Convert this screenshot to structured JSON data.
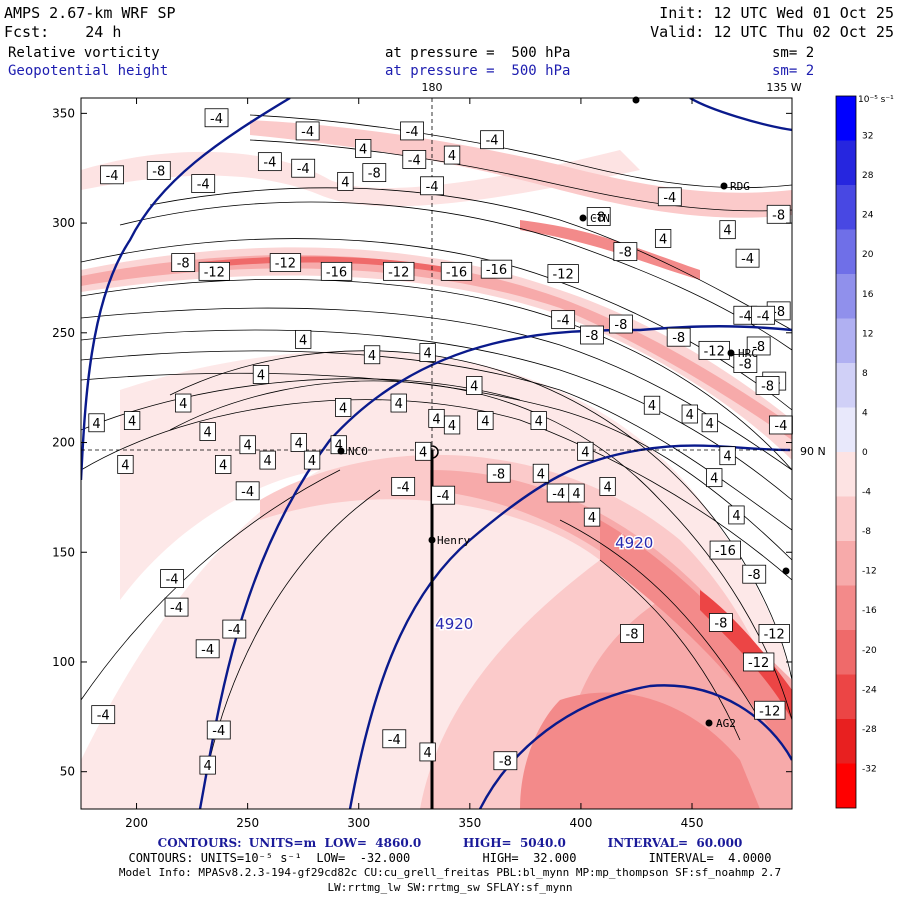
{
  "header": {
    "model": "AMPS 2.67-km WRF SP",
    "init_label": "Init:",
    "init_value": "12 UTC Wed 01 Oct 25",
    "fcst_label": "Fcst:",
    "fcst_value": "24 h",
    "valid_label": "Valid:",
    "valid_value": "12 UTC Thu 02 Oct 25",
    "field1": "Relative vorticity",
    "field1_level": "at pressure =  500 hPa",
    "field1_sm": "sm= 2",
    "field2": "Geopotential height",
    "field2_level": "at pressure =  500 hPa",
    "field2_sm": "sm= 2"
  },
  "map": {
    "lon_top_180": "180",
    "lon_top_135w": "135 W",
    "lat_right_90n": "90 N",
    "stations": [
      "NCO",
      "Henry",
      "RDG",
      "HRC",
      "AG2",
      "CTN"
    ]
  },
  "colors": {
    "height_contour": "#0a1a8c",
    "vort_contour": "#000000",
    "neg_scale": [
      "#fff2f2",
      "#fde3e3",
      "#fbcaca",
      "#f7aaaa",
      "#f38a8a",
      "#ef6a6a",
      "#ec4545",
      "#e82020",
      "#ff0000"
    ],
    "pos_scale": [
      "#ffffff",
      "#e8e8fb",
      "#d0d0f7",
      "#b0b0f2",
      "#9090ec",
      "#6f6fe8",
      "#4848e3",
      "#2626df",
      "#0000ff"
    ]
  },
  "chart_data": {
    "type": "contour-map",
    "title": "Relative vorticity / Geopotential height at 500 hPa",
    "xlim": [
      175,
      495
    ],
    "ylim": [
      33,
      357
    ],
    "x_ticks": [
      200,
      250,
      300,
      350,
      400,
      450
    ],
    "y_ticks": [
      50,
      100,
      150,
      200,
      250,
      300,
      350
    ],
    "vorticity_labels": [
      {
        "x": 189,
        "y": 322,
        "v": "-4"
      },
      {
        "x": 210,
        "y": 324,
        "v": "-8"
      },
      {
        "x": 236,
        "y": 348,
        "v": "-4"
      },
      {
        "x": 277,
        "y": 342,
        "v": "-4"
      },
      {
        "x": 324,
        "y": 342,
        "v": "-4"
      },
      {
        "x": 360,
        "y": 338,
        "v": "-4"
      },
      {
        "x": 260,
        "y": 328,
        "v": "-4"
      },
      {
        "x": 230,
        "y": 318,
        "v": "-4"
      },
      {
        "x": 275,
        "y": 325,
        "v": "-4"
      },
      {
        "x": 307,
        "y": 323,
        "v": "-8"
      },
      {
        "x": 333,
        "y": 317,
        "v": "-4"
      },
      {
        "x": 325,
        "y": 329,
        "v": "-4"
      },
      {
        "x": 342,
        "y": 331,
        "v": "4"
      },
      {
        "x": 302,
        "y": 334,
        "v": "4"
      },
      {
        "x": 294,
        "y": 319,
        "v": "4"
      },
      {
        "x": 267,
        "y": 282,
        "v": "-12"
      },
      {
        "x": 235,
        "y": 278,
        "v": "-12"
      },
      {
        "x": 221,
        "y": 282,
        "v": "-8"
      },
      {
        "x": 290,
        "y": 278,
        "v": "-16"
      },
      {
        "x": 318,
        "y": 278,
        "v": "-12"
      },
      {
        "x": 344,
        "y": 278,
        "v": "-16"
      },
      {
        "x": 362,
        "y": 279,
        "v": "-16"
      },
      {
        "x": 392,
        "y": 277,
        "v": "-12"
      },
      {
        "x": 392,
        "y": 256,
        "v": "-4"
      },
      {
        "x": 405,
        "y": 249,
        "v": "-8"
      },
      {
        "x": 418,
        "y": 254,
        "v": "-8"
      },
      {
        "x": 444,
        "y": 248,
        "v": "-8"
      },
      {
        "x": 460,
        "y": 242,
        "v": "-12"
      },
      {
        "x": 474,
        "y": 236,
        "v": "-8"
      },
      {
        "x": 487,
        "y": 228,
        "v": "-4"
      },
      {
        "x": 474,
        "y": 258,
        "v": "-4"
      },
      {
        "x": 489,
        "y": 260,
        "v": "-8"
      },
      {
        "x": 475,
        "y": 284,
        "v": "-4"
      },
      {
        "x": 466,
        "y": 297,
        "v": "4"
      },
      {
        "x": 489,
        "y": 304,
        "v": "-8"
      },
      {
        "x": 437,
        "y": 293,
        "v": "4"
      },
      {
        "x": 420,
        "y": 287,
        "v": "-8"
      },
      {
        "x": 408,
        "y": 303,
        "v": "-8"
      },
      {
        "x": 440,
        "y": 312,
        "v": "-4"
      },
      {
        "x": 482,
        "y": 258,
        "v": "-4"
      },
      {
        "x": 480,
        "y": 244,
        "v": "-8"
      },
      {
        "x": 484,
        "y": 226,
        "v": "-8"
      },
      {
        "x": 490,
        "y": 208,
        "v": "-4"
      },
      {
        "x": 432,
        "y": 217,
        "v": "4"
      },
      {
        "x": 449,
        "y": 213,
        "v": "4"
      },
      {
        "x": 458,
        "y": 209,
        "v": "4"
      },
      {
        "x": 466,
        "y": 194,
        "v": "4"
      },
      {
        "x": 460,
        "y": 184,
        "v": "4"
      },
      {
        "x": 470,
        "y": 167,
        "v": "4"
      },
      {
        "x": 465,
        "y": 151,
        "v": "-16"
      },
      {
        "x": 478,
        "y": 140,
        "v": "-8"
      },
      {
        "x": 463,
        "y": 118,
        "v": "-8"
      },
      {
        "x": 487,
        "y": 113,
        "v": "-12"
      },
      {
        "x": 480,
        "y": 100,
        "v": "-12"
      },
      {
        "x": 485,
        "y": 78,
        "v": "-12"
      },
      {
        "x": 423,
        "y": 113,
        "v": "-8"
      },
      {
        "x": 366,
        "y": 55,
        "v": "-8"
      },
      {
        "x": 331,
        "y": 59,
        "v": "4"
      },
      {
        "x": 259,
        "y": 192,
        "v": "4"
      },
      {
        "x": 221,
        "y": 218,
        "v": "4"
      },
      {
        "x": 198,
        "y": 210,
        "v": "4"
      },
      {
        "x": 182,
        "y": 209,
        "v": "4"
      },
      {
        "x": 195,
        "y": 190,
        "v": "4"
      },
      {
        "x": 239,
        "y": 190,
        "v": "4"
      },
      {
        "x": 232,
        "y": 205,
        "v": "4"
      },
      {
        "x": 250,
        "y": 199,
        "v": "4"
      },
      {
        "x": 273,
        "y": 200,
        "v": "4"
      },
      {
        "x": 256,
        "y": 231,
        "v": "4"
      },
      {
        "x": 275,
        "y": 247,
        "v": "4"
      },
      {
        "x": 306,
        "y": 240,
        "v": "4"
      },
      {
        "x": 331,
        "y": 241,
        "v": "4"
      },
      {
        "x": 352,
        "y": 226,
        "v": "4"
      },
      {
        "x": 357,
        "y": 210,
        "v": "4"
      },
      {
        "x": 342,
        "y": 208,
        "v": "4"
      },
      {
        "x": 335,
        "y": 211,
        "v": "4"
      },
      {
        "x": 381,
        "y": 210,
        "v": "4"
      },
      {
        "x": 382,
        "y": 186,
        "v": "4"
      },
      {
        "x": 405,
        "y": 166,
        "v": "4"
      },
      {
        "x": 412,
        "y": 180,
        "v": "4"
      },
      {
        "x": 390,
        "y": 177,
        "v": "-4"
      },
      {
        "x": 363,
        "y": 186,
        "v": "-8"
      },
      {
        "x": 338,
        "y": 176,
        "v": "-4"
      },
      {
        "x": 320,
        "y": 180,
        "v": "-4"
      },
      {
        "x": 291,
        "y": 199,
        "v": "4"
      },
      {
        "x": 279,
        "y": 192,
        "v": "4"
      },
      {
        "x": 293,
        "y": 216,
        "v": "4"
      },
      {
        "x": 318,
        "y": 218,
        "v": "4"
      },
      {
        "x": 329,
        "y": 196,
        "v": "4"
      },
      {
        "x": 398,
        "y": 177,
        "v": "4"
      },
      {
        "x": 402,
        "y": 196,
        "v": "4"
      },
      {
        "x": 250,
        "y": 178,
        "v": "-4"
      },
      {
        "x": 216,
        "y": 138,
        "v": "-4"
      },
      {
        "x": 218,
        "y": 125,
        "v": "-4"
      },
      {
        "x": 244,
        "y": 115,
        "v": "-4"
      },
      {
        "x": 232,
        "y": 106,
        "v": "-4"
      },
      {
        "x": 185,
        "y": 76,
        "v": "-4"
      },
      {
        "x": 237,
        "y": 69,
        "v": "-4"
      },
      {
        "x": 316,
        "y": 65,
        "v": "-4"
      },
      {
        "x": 232,
        "y": 53,
        "v": "4"
      }
    ],
    "height_labels": [
      {
        "x": 424,
        "y": 152,
        "v": "4920"
      },
      {
        "x": 343,
        "y": 115,
        "v": "4920"
      }
    ],
    "colorbar": {
      "unit_label": "10⁻⁵ s⁻¹",
      "ticks": [
        "32",
        "28",
        "24",
        "20",
        "16",
        "12",
        "8",
        "4",
        "0",
        "-4",
        "-8",
        "-12",
        "-16",
        "-20",
        "-24",
        "-28",
        "-32"
      ]
    }
  },
  "footer": {
    "line1_title": "CONTOURS:",
    "line1_text": "UNITS=m  LOW=  4860.0          HIGH=  5040.0          INTERVAL=  60.000",
    "line2_title": "CONTOURS:",
    "line2_text": "UNITS=10⁻⁵ s⁻¹  LOW=  -32.000          HIGH=  32.000          INTERVAL=  4.0000",
    "model_info": "Model Info: MPASv8.2.3-194-gf29cd82c CU:cu_grell_freitas PBL:bl_mynn MP:mp_thompson SF:sf_noahmp 2.7",
    "model_info2": "LW:rrtmg_lw SW:rrtmg_sw SFLAY:sf_mynn"
  }
}
